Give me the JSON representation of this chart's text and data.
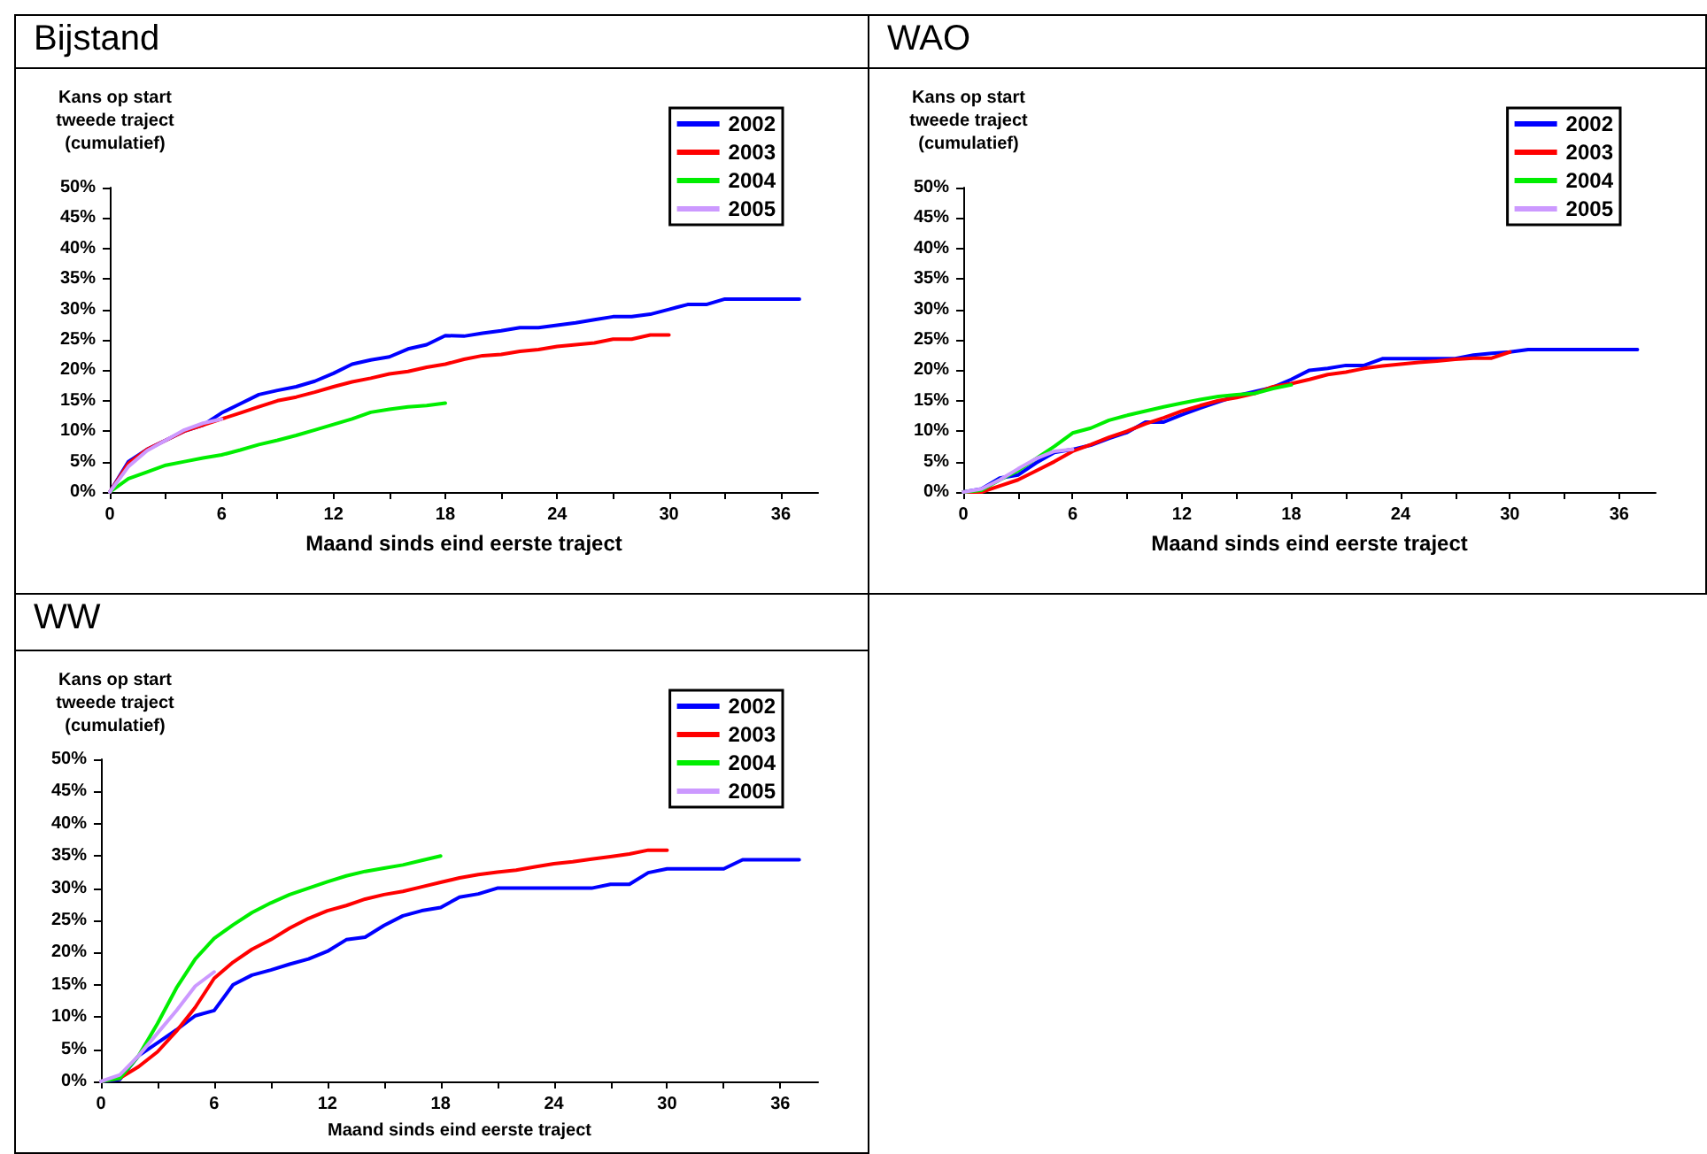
{
  "chart_data": [
    {
      "type": "line",
      "title": "Bijstand",
      "xlabel": "Maand sinds eind eerste traject",
      "ylabel": "Kans op start tweede traject (cumulatief)",
      "legend": "top right",
      "marker": "none",
      "grid": false,
      "xlim": [
        0,
        38
      ],
      "xticks": [
        0,
        {
          "value": 3,
          "label": null
        },
        6,
        {
          "value": 9,
          "label": null
        },
        12,
        {
          "value": 15,
          "label": null
        },
        18,
        {
          "value": 21,
          "label": null
        },
        24,
        {
          "value": 27,
          "label": null
        },
        30,
        {
          "value": 33,
          "label": null
        },
        36
      ],
      "ylim": [
        0,
        50
      ],
      "yticks": [
        {
          "value": 0,
          "label": "0%"
        },
        {
          "value": 5,
          "label": "5%"
        },
        {
          "value": 10,
          "label": "10%"
        },
        {
          "value": 15,
          "label": "15%"
        },
        {
          "value": 20,
          "label": "20%"
        },
        {
          "value": 25,
          "label": "25%"
        },
        {
          "value": 30,
          "label": "30%"
        },
        {
          "value": 35,
          "label": "35%"
        },
        {
          "value": 40,
          "label": "40%"
        },
        {
          "value": 45,
          "label": "45%"
        },
        {
          "value": 50,
          "label": "50%"
        }
      ],
      "series": [
        {
          "name": "2002",
          "color": "#0000ff",
          "x": [
            0,
            1,
            2,
            3,
            4,
            5,
            6,
            7,
            8,
            9,
            10,
            11,
            12,
            13,
            14,
            15,
            16,
            17,
            18,
            19,
            20,
            21,
            22,
            23,
            24,
            25,
            26,
            27,
            28,
            29,
            30,
            31,
            32,
            33,
            34,
            35,
            36,
            37
          ],
          "values": [
            0,
            5,
            7,
            8.5,
            10,
            11,
            13,
            14.5,
            16,
            16.7,
            17.3,
            18.2,
            19.5,
            21,
            21.7,
            22.2,
            23.5,
            24.2,
            25.7,
            25.6,
            26.1,
            26.5,
            27,
            27,
            27.4,
            27.8,
            28.3,
            28.8,
            28.8,
            29.2,
            30,
            30.8,
            30.8,
            31.7,
            31.7,
            31.7,
            31.7,
            31.7
          ]
        },
        {
          "name": "2003",
          "color": "#ff0000",
          "x": [
            0,
            1,
            2,
            3,
            4,
            5,
            6,
            7,
            8,
            9,
            10,
            11,
            12,
            13,
            14,
            15,
            16,
            17,
            18,
            19,
            20,
            21,
            22,
            23,
            24,
            25,
            26,
            27,
            28,
            29,
            30
          ],
          "values": [
            0,
            4.7,
            7,
            8.5,
            10,
            11,
            12,
            13,
            14,
            15,
            15.6,
            16.4,
            17.3,
            18.1,
            18.7,
            19.4,
            19.8,
            20.5,
            21,
            21.8,
            22.4,
            22.6,
            23.1,
            23.4,
            23.9,
            24.2,
            24.5,
            25.1,
            25.1,
            25.8,
            25.8
          ]
        },
        {
          "name": "2004",
          "color": "#00ee00",
          "x": [
            0,
            1,
            2,
            3,
            4,
            5,
            6,
            7,
            8,
            9,
            10,
            11,
            12,
            13,
            14,
            15,
            16,
            17,
            18
          ],
          "values": [
            0,
            2.2,
            3.3,
            4.4,
            5,
            5.6,
            6.1,
            6.9,
            7.8,
            8.5,
            9.3,
            10.2,
            11.1,
            12,
            13.1,
            13.6,
            14,
            14.2,
            14.6
          ]
        },
        {
          "name": "2005",
          "color": "#cc99ff",
          "x": [
            0,
            1,
            2,
            3,
            4,
            5,
            6
          ],
          "values": [
            0,
            4.2,
            6.8,
            8.5,
            10.2,
            11.3,
            12
          ]
        }
      ]
    },
    {
      "type": "line",
      "title": "WAO",
      "xlabel": "Maand sinds eind eerste traject",
      "ylabel": "Kans op start tweede traject (cumulatief)",
      "legend": "top right",
      "marker": "none",
      "grid": false,
      "xlim": [
        0,
        38
      ],
      "xticks": [
        0,
        {
          "value": 3,
          "label": null
        },
        6,
        {
          "value": 9,
          "label": null
        },
        12,
        {
          "value": 15,
          "label": null
        },
        18,
        {
          "value": 21,
          "label": null
        },
        24,
        {
          "value": 27,
          "label": null
        },
        30,
        {
          "value": 33,
          "label": null
        },
        36
      ],
      "ylim": [
        0,
        50
      ],
      "yticks": [
        {
          "value": 0,
          "label": "0%"
        },
        {
          "value": 5,
          "label": "5%"
        },
        {
          "value": 10,
          "label": "10%"
        },
        {
          "value": 15,
          "label": "15%"
        },
        {
          "value": 20,
          "label": "20%"
        },
        {
          "value": 25,
          "label": "25%"
        },
        {
          "value": 30,
          "label": "30%"
        },
        {
          "value": 35,
          "label": "35%"
        },
        {
          "value": 40,
          "label": "40%"
        },
        {
          "value": 45,
          "label": "45%"
        },
        {
          "value": 50,
          "label": "50%"
        }
      ],
      "series": [
        {
          "name": "2002",
          "color": "#0000ff",
          "x": [
            0,
            1,
            2,
            3,
            4,
            5,
            6,
            7,
            8,
            9,
            10,
            11,
            12,
            13,
            14,
            15,
            16,
            17,
            18,
            19,
            20,
            21,
            22,
            23,
            24,
            25,
            26,
            27,
            28,
            29,
            30,
            31,
            32,
            33,
            34,
            35,
            36,
            37
          ],
          "values": [
            0,
            0.5,
            2.3,
            2.8,
            4.8,
            6.5,
            7,
            7.7,
            8.8,
            9.8,
            11.5,
            11.5,
            12.7,
            13.8,
            14.8,
            15.8,
            16.5,
            17.2,
            18.5,
            20,
            20.3,
            20.8,
            20.8,
            21.9,
            21.9,
            21.9,
            21.9,
            21.9,
            22.5,
            22.8,
            23,
            23.4,
            23.4,
            23.4,
            23.4,
            23.4,
            23.4,
            23.4
          ]
        },
        {
          "name": "2003",
          "color": "#ff0000",
          "x": [
            0,
            1,
            2,
            3,
            4,
            5,
            6,
            7,
            8,
            9,
            10,
            11,
            12,
            13,
            14,
            15,
            16,
            17,
            18,
            19,
            20,
            21,
            22,
            23,
            24,
            25,
            26,
            27,
            28,
            29,
            30
          ],
          "values": [
            0,
            0,
            1,
            2,
            3.5,
            5,
            6.7,
            7.8,
            9,
            10,
            11.2,
            12.2,
            13.3,
            14.2,
            15,
            15.5,
            16.2,
            17.3,
            17.8,
            18.5,
            19.3,
            19.7,
            20.3,
            20.7,
            21,
            21.3,
            21.5,
            21.8,
            22,
            22,
            23
          ]
        },
        {
          "name": "2004",
          "color": "#00ee00",
          "x": [
            0,
            1,
            2,
            3,
            4,
            5,
            6,
            7,
            8,
            9,
            10,
            11,
            12,
            13,
            14,
            15,
            16,
            17,
            18
          ],
          "values": [
            0,
            0.3,
            2,
            3.5,
            5.5,
            7.5,
            9.7,
            10.5,
            11.8,
            12.6,
            13.3,
            14,
            14.6,
            15.2,
            15.7,
            16,
            16.2,
            17,
            17.6
          ]
        },
        {
          "name": "2005",
          "color": "#cc99ff",
          "x": [
            0,
            1,
            2,
            3,
            4,
            5,
            6
          ],
          "values": [
            0,
            0.5,
            2,
            3.8,
            5.5,
            6.7,
            7
          ]
        }
      ]
    },
    {
      "type": "line",
      "title": "WW",
      "xlabel": "Maand sinds eind eerste traject",
      "ylabel": "Kans op start tweede traject (cumulatief)",
      "legend": "top right",
      "marker": "none",
      "grid": false,
      "xlim": [
        0,
        38
      ],
      "xticks": [
        0,
        {
          "value": 3,
          "label": null
        },
        6,
        {
          "value": 9,
          "label": null
        },
        12,
        {
          "value": 15,
          "label": null
        },
        18,
        {
          "value": 21,
          "label": null
        },
        24,
        {
          "value": 27,
          "label": null
        },
        30,
        {
          "value": 33,
          "label": null
        },
        36
      ],
      "ylim": [
        0,
        50
      ],
      "yticks": [
        {
          "value": 0,
          "label": "0%"
        },
        {
          "value": 5,
          "label": "5%"
        },
        {
          "value": 10,
          "label": "10%"
        },
        {
          "value": 15,
          "label": "15%"
        },
        {
          "value": 20,
          "label": "20%"
        },
        {
          "value": 25,
          "label": "25%"
        },
        {
          "value": 30,
          "label": "30%"
        },
        {
          "value": 35,
          "label": "35%"
        },
        {
          "value": 40,
          "label": "40%"
        },
        {
          "value": 45,
          "label": "45%"
        },
        {
          "value": 50,
          "label": "50%"
        }
      ],
      "series": [
        {
          "name": "2002",
          "color": "#0000ff",
          "x": [
            0,
            1,
            2,
            3,
            4,
            5,
            6,
            7,
            8,
            9,
            10,
            11,
            12,
            13,
            14,
            15,
            16,
            17,
            18,
            19,
            20,
            21,
            22,
            23,
            24,
            25,
            26,
            27,
            28,
            29,
            30,
            31,
            32,
            33,
            34,
            35,
            36,
            37
          ],
          "values": [
            0,
            0.3,
            4,
            6,
            8,
            10.2,
            11,
            15,
            16.5,
            17.3,
            18.2,
            19,
            20.2,
            22,
            22.4,
            24.2,
            25.7,
            26.5,
            27,
            28.6,
            29.1,
            30,
            30,
            30,
            30,
            30,
            30,
            30.6,
            30.6,
            32.4,
            33,
            33,
            33,
            33,
            34.4,
            34.4,
            34.4,
            34.4
          ]
        },
        {
          "name": "2003",
          "color": "#ff0000",
          "x": [
            0,
            1,
            2,
            3,
            4,
            5,
            6,
            7,
            8,
            9,
            10,
            11,
            12,
            13,
            14,
            15,
            16,
            17,
            18,
            19,
            20,
            21,
            22,
            23,
            24,
            25,
            26,
            27,
            28,
            29,
            30
          ],
          "values": [
            0,
            0.5,
            2.3,
            4.6,
            7.8,
            11.5,
            16,
            18.5,
            20.5,
            22,
            23.8,
            25.3,
            26.5,
            27.3,
            28.3,
            29,
            29.5,
            30.2,
            30.9,
            31.6,
            32.1,
            32.5,
            32.8,
            33.3,
            33.8,
            34.1,
            34.5,
            34.9,
            35.3,
            35.9,
            35.9
          ]
        },
        {
          "name": "2004",
          "color": "#00ee00",
          "x": [
            0,
            1,
            2,
            3,
            4,
            5,
            6,
            7,
            8,
            9,
            10,
            11,
            12,
            13,
            14,
            15,
            16,
            17,
            18
          ],
          "values": [
            0,
            0.5,
            4,
            9,
            14.5,
            19,
            22.2,
            24.3,
            26.2,
            27.7,
            29,
            30,
            31,
            31.9,
            32.6,
            33.1,
            33.6,
            34.3,
            35
          ]
        },
        {
          "name": "2005",
          "color": "#cc99ff",
          "x": [
            0,
            1,
            2,
            3,
            4,
            5,
            6
          ],
          "values": [
            0,
            1,
            4,
            7.5,
            11,
            14.8,
            17
          ]
        }
      ]
    }
  ]
}
